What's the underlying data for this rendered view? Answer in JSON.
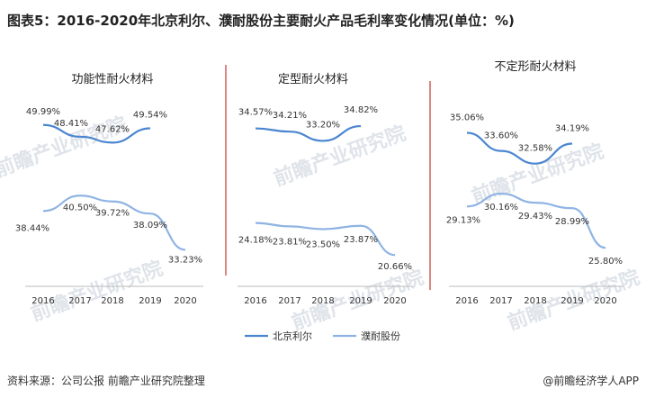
{
  "title": "图表5：2016-2020年北京利尔、濮耐股份主要耐火产品毛利率变化情况(单位：%)",
  "source": "资料来源：公司公报 前瞻产业研究院整理",
  "brand": "@前瞻经济学人APP",
  "watermark": "前瞻产业研究院",
  "colors": {
    "beijing_lier": "#4a86d0",
    "puna": "#8fb4e3",
    "divider": "#c0392b"
  },
  "chart_data": [
    {
      "type": "line",
      "title": "功能性耐火材料",
      "categories": [
        "2016",
        "2017",
        "2018",
        "2019",
        "2020"
      ],
      "series": [
        {
          "name": "北京利尔",
          "values": [
            49.99,
            48.41,
            47.62,
            49.54,
            null
          ],
          "labels": [
            "49.99%",
            "48.41%",
            "47.62%",
            "49.54%",
            ""
          ]
        },
        {
          "name": "濮耐股份",
          "values": [
            38.44,
            40.5,
            39.72,
            38.09,
            33.23
          ],
          "labels": [
            "38.44%",
            "40.50%",
            "39.72%",
            "38.09%",
            "33.23%"
          ]
        }
      ]
    },
    {
      "type": "line",
      "title": "定型耐火材料",
      "categories": [
        "2016",
        "2017",
        "2018",
        "2019",
        "2020"
      ],
      "series": [
        {
          "name": "北京利尔",
          "values": [
            34.57,
            34.21,
            33.2,
            34.82,
            null
          ],
          "labels": [
            "34.57%",
            "34.21%",
            "33.20%",
            "34.82%",
            ""
          ]
        },
        {
          "name": "濮耐股份",
          "values": [
            24.18,
            23.81,
            23.5,
            23.87,
            20.66
          ],
          "labels": [
            "24.18%",
            "23.81%",
            "23.50%",
            "23.87%",
            "20.66%"
          ]
        }
      ]
    },
    {
      "type": "line",
      "title": "不定形耐火材料",
      "categories": [
        "2016",
        "2017",
        "2018",
        "2019",
        "2020"
      ],
      "series": [
        {
          "name": "北京利尔",
          "values": [
            35.06,
            33.6,
            32.58,
            34.19,
            null
          ],
          "labels": [
            "35.06%",
            "33.60%",
            "32.58%",
            "34.19%",
            ""
          ]
        },
        {
          "name": "濮耐股份",
          "values": [
            29.13,
            30.16,
            29.43,
            28.99,
            25.8
          ],
          "labels": [
            "29.13%",
            "30.16%",
            "29.43%",
            "28.99%",
            "25.80%"
          ]
        }
      ]
    }
  ],
  "legend": {
    "position": "bottom-center",
    "items": [
      "北京利尔",
      "濮耐股份"
    ]
  }
}
